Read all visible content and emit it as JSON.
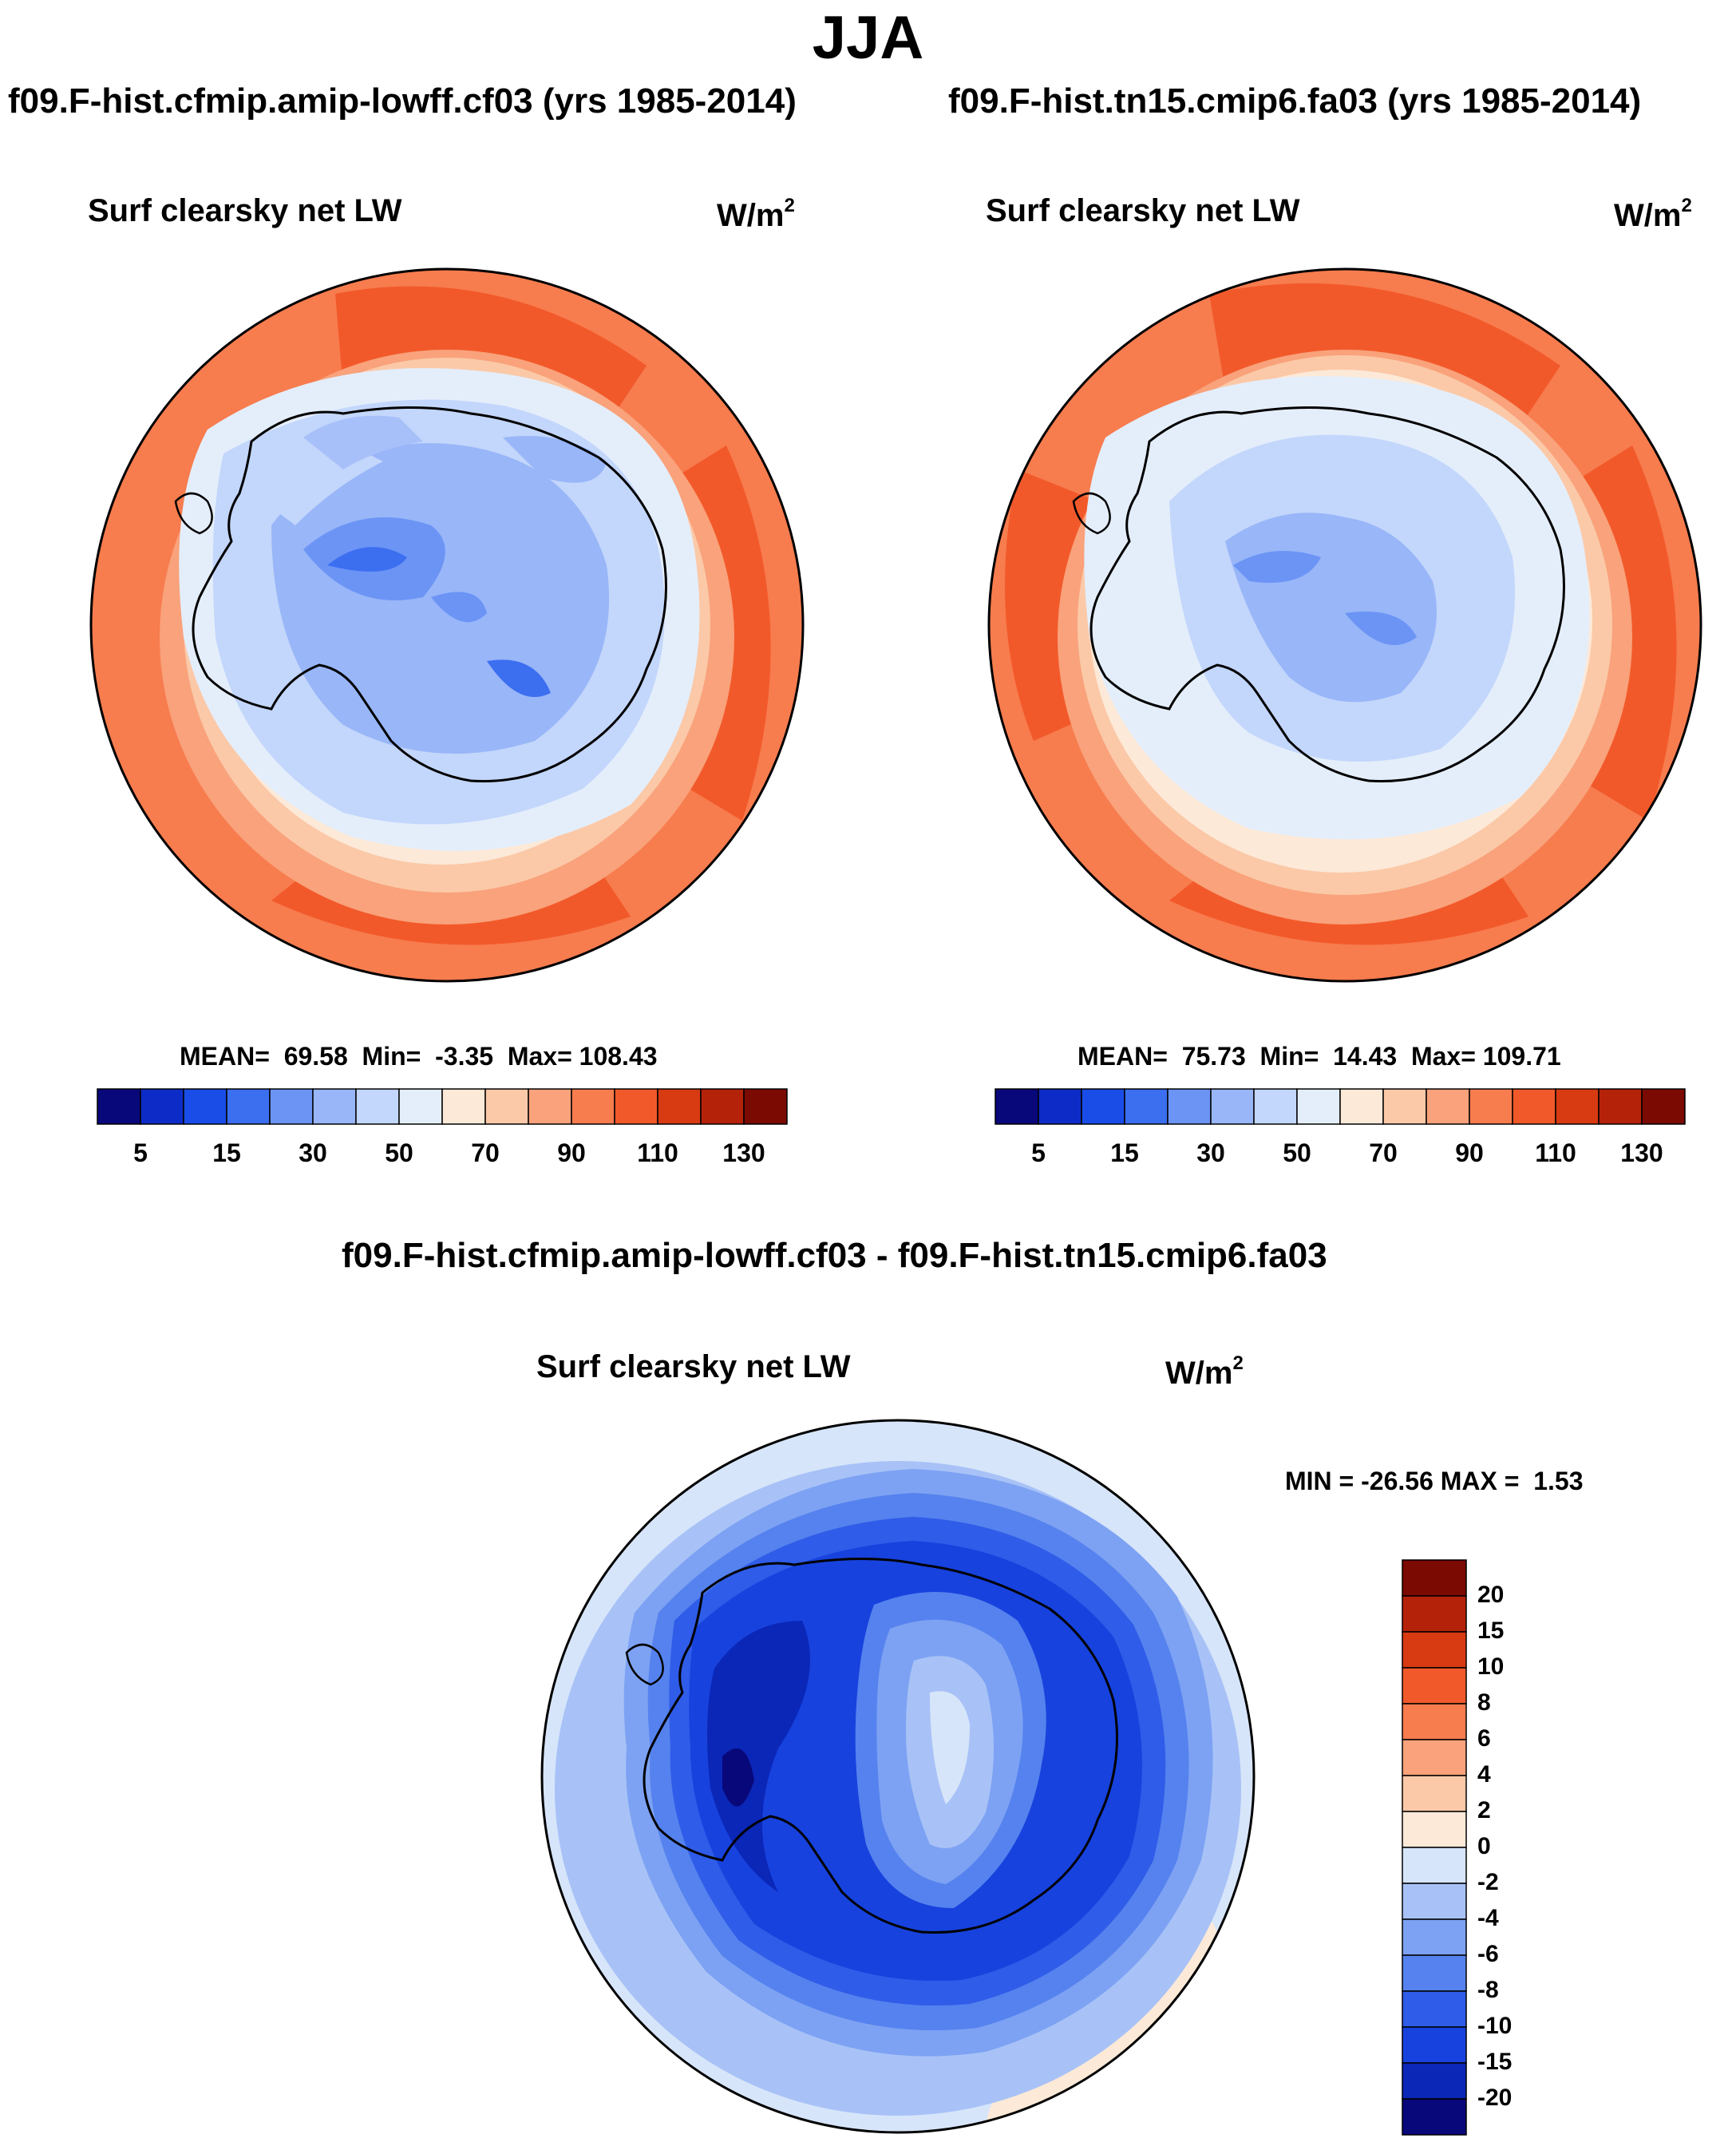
{
  "figure": {
    "season": "JJA",
    "panels": [
      {
        "case_title": "f09.F-hist.cfmip.amip-lowff.cf03 (yrs 1985-2014)",
        "variable": "Surf clearsky net LW",
        "units": "W/m",
        "units_exp": "2",
        "stats": {
          "mean_label": "MEAN=",
          "mean": "69.58",
          "min_label": "Min=",
          "min": "-3.35",
          "max_label": "Max=",
          "max": "108.43"
        }
      },
      {
        "case_title": "f09.F-hist.tn15.cmip6.fa03 (yrs 1985-2014)",
        "variable": "Surf clearsky net LW",
        "units": "W/m",
        "units_exp": "2",
        "stats": {
          "mean_label": "MEAN=",
          "mean": "75.73",
          "min_label": "Min=",
          "min": "14.43",
          "max_label": "Max=",
          "max": "109.71"
        }
      }
    ],
    "diff_panel": {
      "case_title": "f09.F-hist.cfmip.amip-lowff.cf03 - f09.F-hist.tn15.cmip6.fa03",
      "variable": "Surf clearsky net LW",
      "units": "W/m",
      "units_exp": "2",
      "stats": {
        "min_label": "MIN =",
        "min": "-26.56",
        "max_label": "MAX =",
        "max": "1.53"
      }
    }
  },
  "colorbars": {
    "absolute": {
      "colors": [
        "#08087a",
        "#0d2cc7",
        "#1a4de8",
        "#3c6ef0",
        "#6b94f5",
        "#98b6f8",
        "#c3d6fb",
        "#e4eefb",
        "#fce9d8",
        "#fbc9a8",
        "#f9a27b",
        "#f77c4e",
        "#f2592a",
        "#d83a12",
        "#b5220a",
        "#7a0a02"
      ],
      "tick_labels": [
        "5",
        "15",
        "30",
        "50",
        "70",
        "90",
        "110",
        "130"
      ]
    },
    "difference": {
      "colors": [
        "#08087a",
        "#0b27b8",
        "#1742de",
        "#2f5ce8",
        "#5582ee",
        "#7da2f3",
        "#a8c2f7",
        "#d7e5fa",
        "#fce9d8",
        "#fbc9a8",
        "#f9a27b",
        "#f77c4e",
        "#f2592a",
        "#d83a12",
        "#b5220a",
        "#7a0a02"
      ],
      "tick_labels": [
        "-20",
        "-15",
        "-10",
        "-8",
        "-6",
        "-4",
        "-2",
        "0",
        "2",
        "4",
        "6",
        "8",
        "10",
        "15",
        "20"
      ]
    }
  }
}
